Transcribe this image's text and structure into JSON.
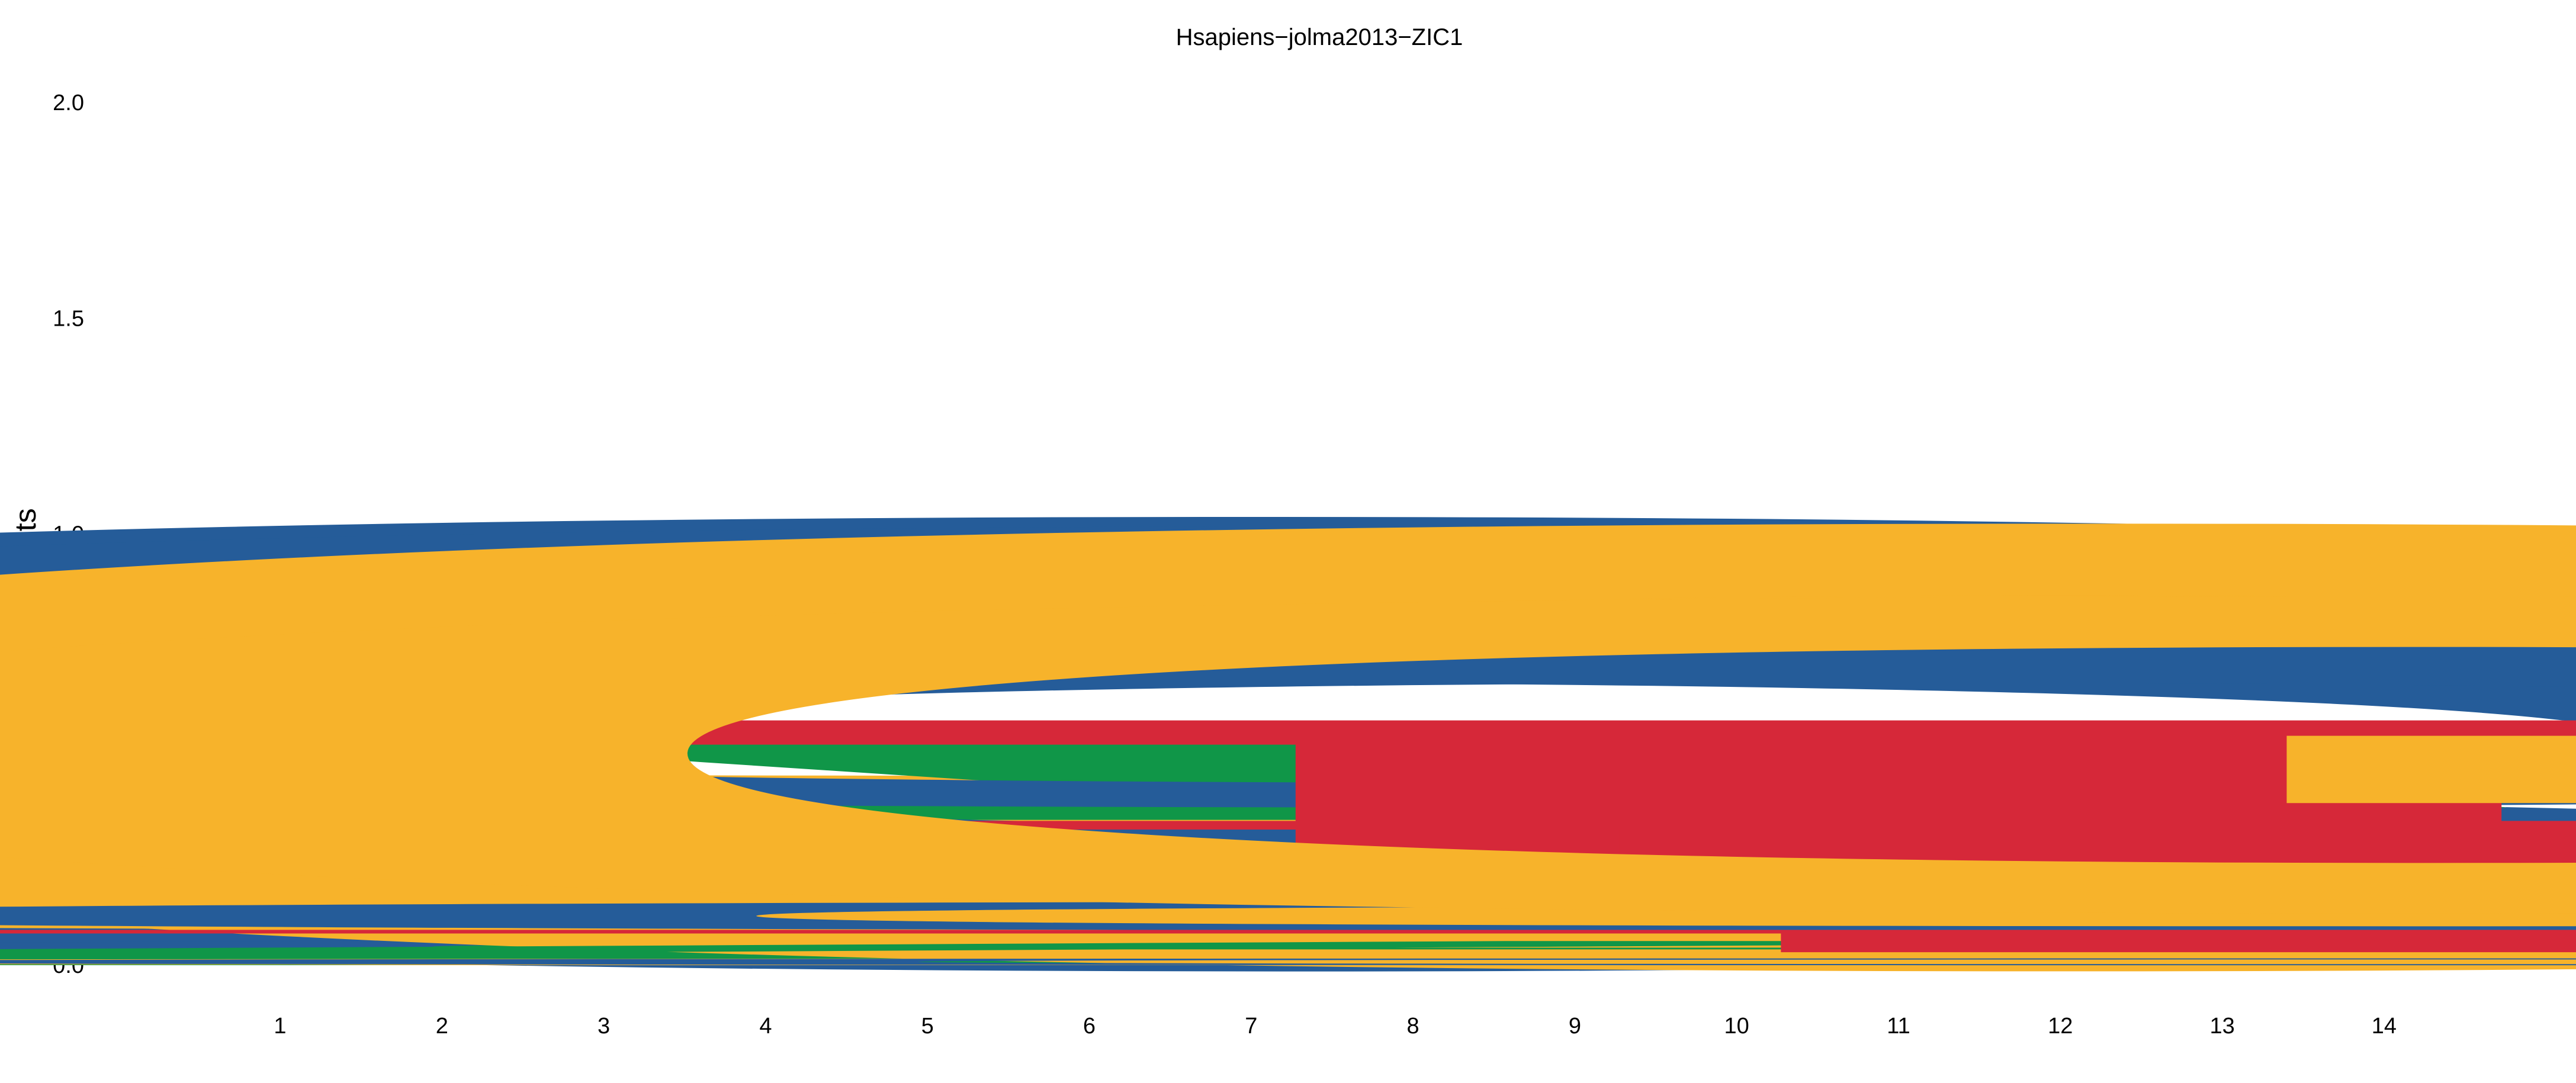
{
  "chart_data": {
    "type": "sequence-logo",
    "title": "Hsapiens−jolma2013−ZIC1",
    "ylabel": "Bits",
    "xlabel": "",
    "ylim": [
      0,
      2
    ],
    "yticks": [
      0.0,
      0.5,
      1.0,
      1.5,
      2.0
    ],
    "ytick_labels": [
      "0.0",
      "0.5",
      "1.0",
      "1.5",
      "2.0"
    ],
    "grid": false,
    "colors": {
      "A": "#109648",
      "C": "#255C99",
      "G": "#F7B32B",
      "T": "#D62839"
    },
    "positions": [
      {
        "label": "1",
        "stack": [
          {
            "base": "A",
            "bits": 0.01
          },
          {
            "base": "C",
            "bits": 0.06
          },
          {
            "base": "T",
            "bits": 0.16
          },
          {
            "base": "G",
            "bits": 0.4
          }
        ]
      },
      {
        "label": "2",
        "stack": [
          {
            "base": "T",
            "bits": 0.01
          },
          {
            "base": "C",
            "bits": 0.06
          },
          {
            "base": "G",
            "bits": 0.19
          },
          {
            "base": "A",
            "bits": 0.58
          }
        ]
      },
      {
        "label": "3",
        "stack": [
          {
            "base": "G",
            "bits": 0.01
          },
          {
            "base": "T",
            "bits": 0.01
          },
          {
            "base": "A",
            "bits": 0.05
          },
          {
            "base": "C",
            "bits": 1.68
          }
        ]
      },
      {
        "label": "4",
        "stack": [
          {
            "base": "G",
            "bits": 0.01
          },
          {
            "base": "T",
            "bits": 0.02
          },
          {
            "base": "A",
            "bits": 0.07
          },
          {
            "base": "C",
            "bits": 1.51
          }
        ]
      },
      {
        "label": "5",
        "stack": [
          {
            "base": "G",
            "bits": 0.01
          },
          {
            "base": "T",
            "bits": 0.04
          },
          {
            "base": "A",
            "bits": 0.12
          },
          {
            "base": "C",
            "bits": 1.1
          }
        ]
      },
      {
        "label": "6",
        "stack": [
          {
            "base": "C",
            "bits": 1.98
          }
        ]
      },
      {
        "label": "7",
        "stack": [
          {
            "base": "A",
            "bits": 0.01
          },
          {
            "base": "C",
            "bits": 1.92
          }
        ]
      },
      {
        "label": "8",
        "stack": [
          {
            "base": "T",
            "bits": 0.37
          },
          {
            "base": "C",
            "bits": 0.67
          }
        ]
      },
      {
        "label": "9",
        "stack": [
          {
            "base": "A",
            "bits": 0.11
          },
          {
            "base": "G",
            "bits": 1.52
          }
        ]
      },
      {
        "label": "10",
        "stack": [
          {
            "base": "G",
            "bits": 0.01
          },
          {
            "base": "T",
            "bits": 0.23
          },
          {
            "base": "C",
            "bits": 0.94
          }
        ]
      },
      {
        "label": "11",
        "stack": [
          {
            "base": "A",
            "bits": 0.03
          },
          {
            "base": "C",
            "bits": 0.05
          },
          {
            "base": "G",
            "bits": 0.14
          },
          {
            "base": "T",
            "bits": 0.67
          }
        ]
      },
      {
        "label": "12",
        "stack": [
          {
            "base": "G",
            "bits": 1.95
          }
        ]
      },
      {
        "label": "13",
        "stack": [
          {
            "base": "G",
            "bits": 0.03
          },
          {
            "base": "A",
            "bits": 0.05
          },
          {
            "base": "C",
            "bits": 0.13
          },
          {
            "base": "T",
            "bits": 0.24
          }
        ]
      },
      {
        "label": "14",
        "stack": [
          {
            "base": "C",
            "bits": 0.03
          },
          {
            "base": "T",
            "bits": 0.1
          },
          {
            "base": "G",
            "bits": 1.38
          }
        ]
      }
    ]
  }
}
